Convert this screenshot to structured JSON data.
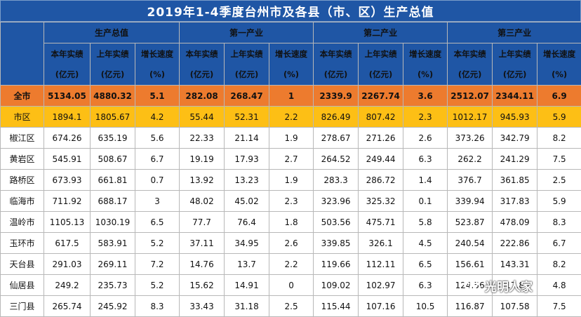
{
  "title": "2019年1-4季度台州市及各县（市、区）生产总值",
  "groups": [
    "生产总值",
    "第一产业",
    "第二产业",
    "第三产业"
  ],
  "subheaders": [
    {
      "line1": "本年实绩",
      "line2": "(亿元)"
    },
    {
      "line1": "上年实绩",
      "line2": "(亿元)"
    },
    {
      "line1": "增长速度",
      "line2": "(%)"
    }
  ],
  "rows": [
    {
      "name": "全市",
      "values": [
        "5134.05",
        "4880.32",
        "5.1",
        "282.08",
        "268.47",
        "1",
        "2339.9",
        "2267.74",
        "3.6",
        "2512.07",
        "2344.11",
        "6.9"
      ]
    },
    {
      "name": "市区",
      "values": [
        "1894.1",
        "1805.67",
        "4.2",
        "55.44",
        "52.31",
        "2.2",
        "826.49",
        "807.42",
        "2.3",
        "1012.17",
        "945.93",
        "5.9"
      ]
    },
    {
      "name": "椒江区",
      "values": [
        "674.26",
        "635.19",
        "5.6",
        "22.33",
        "21.14",
        "1.9",
        "278.67",
        "271.26",
        "2.6",
        "373.26",
        "342.79",
        "8.2"
      ]
    },
    {
      "name": "黄岩区",
      "values": [
        "545.91",
        "508.67",
        "6.7",
        "19.19",
        "17.93",
        "2.7",
        "264.52",
        "249.44",
        "6.3",
        "262.2",
        "241.29",
        "7.5"
      ]
    },
    {
      "name": "路桥区",
      "values": [
        "673.93",
        "661.81",
        "0.7",
        "13.92",
        "13.23",
        "1.9",
        "283.3",
        "286.72",
        "1.4",
        "376.7",
        "361.85",
        "2.5"
      ]
    },
    {
      "name": "临海市",
      "values": [
        "711.92",
        "688.17",
        "3",
        "48.02",
        "45.02",
        "2.3",
        "323.96",
        "325.32",
        "0.1",
        "339.94",
        "317.83",
        "5.9"
      ]
    },
    {
      "name": "温岭市",
      "values": [
        "1105.13",
        "1030.19",
        "6.5",
        "77.7",
        "76.4",
        "1.8",
        "503.56",
        "475.71",
        "5.8",
        "523.87",
        "478.09",
        "8.3"
      ]
    },
    {
      "name": "玉环市",
      "values": [
        "617.5",
        "583.91",
        "5.2",
        "37.11",
        "34.95",
        "2.6",
        "339.85",
        "326.1",
        "4.5",
        "240.54",
        "222.86",
        "6.7"
      ]
    },
    {
      "name": "天台县",
      "values": [
        "291.03",
        "269.11",
        "7.2",
        "14.76",
        "13.7",
        "2.2",
        "119.66",
        "112.11",
        "6.5",
        "156.61",
        "143.31",
        "8.2"
      ]
    },
    {
      "name": "仙居县",
      "values": [
        "249.2",
        "235.73",
        "5.2",
        "15.62",
        "14.91",
        "0",
        "109.02",
        "102.97",
        "6.3",
        "124.56",
        "117.85",
        "4.8"
      ]
    },
    {
      "name": "三门县",
      "values": [
        "265.74",
        "245.92",
        "8.3",
        "33.43",
        "31.18",
        "2.5",
        "115.44",
        "107.16",
        "10.5",
        "116.87",
        "107.58",
        "7.5"
      ]
    }
  ],
  "watermark": "光明人家",
  "colors": {
    "header_blue": "#1f56a5",
    "total_orange": "#ed7b2e",
    "urban_yellow": "#fdbf15",
    "highlight_red": "#e3231e"
  }
}
